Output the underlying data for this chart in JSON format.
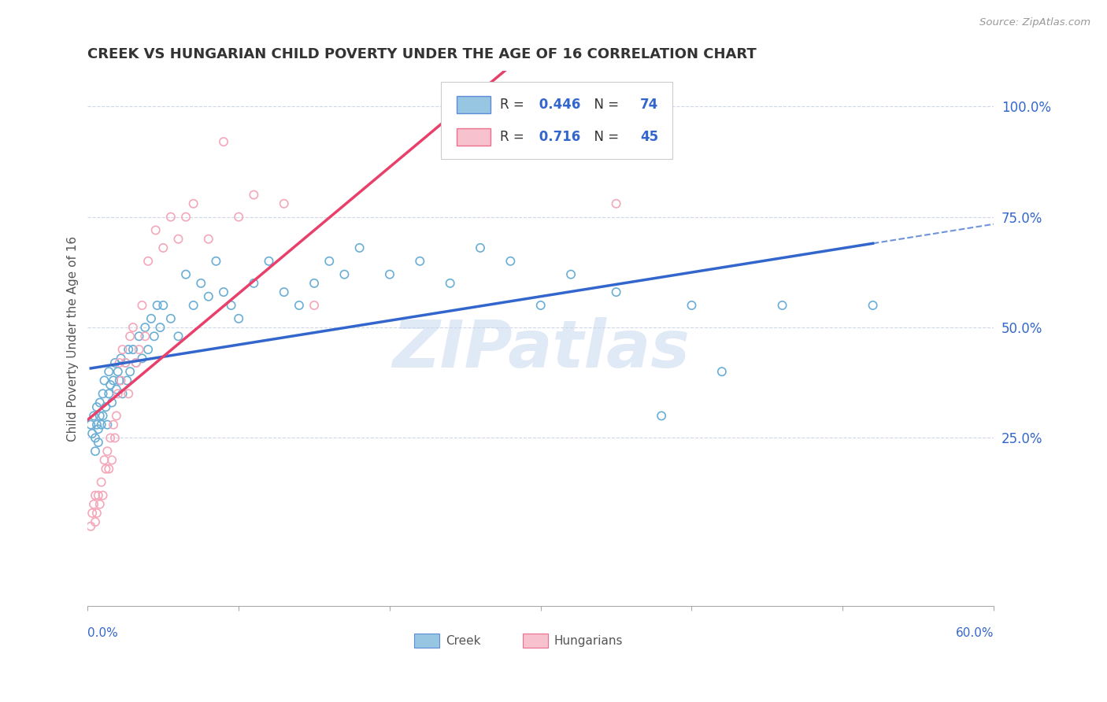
{
  "title": "CREEK VS HUNGARIAN CHILD POVERTY UNDER THE AGE OF 16 CORRELATION CHART",
  "source": "Source: ZipAtlas.com",
  "ylabel": "Child Poverty Under the Age of 16",
  "ylabel_right_ticks": [
    "100.0%",
    "75.0%",
    "50.0%",
    "25.0%"
  ],
  "ylabel_right_vals": [
    1.0,
    0.75,
    0.5,
    0.25
  ],
  "xlim": [
    0.0,
    0.6
  ],
  "ylim": [
    -0.13,
    1.08
  ],
  "creek_color": "#6aaed6",
  "hungarian_color": "#f4a7b9",
  "creek_line_color": "#3366cc",
  "hungarian_line_color": "#e8406a",
  "creek_R": 0.446,
  "creek_N": 74,
  "hungarian_R": 0.716,
  "hungarian_N": 45,
  "creek_scatter": [
    [
      0.002,
      0.28
    ],
    [
      0.003,
      0.26
    ],
    [
      0.004,
      0.3
    ],
    [
      0.005,
      0.25
    ],
    [
      0.005,
      0.22
    ],
    [
      0.006,
      0.28
    ],
    [
      0.006,
      0.32
    ],
    [
      0.007,
      0.27
    ],
    [
      0.007,
      0.24
    ],
    [
      0.008,
      0.3
    ],
    [
      0.008,
      0.33
    ],
    [
      0.009,
      0.28
    ],
    [
      0.01,
      0.35
    ],
    [
      0.01,
      0.3
    ],
    [
      0.011,
      0.38
    ],
    [
      0.012,
      0.32
    ],
    [
      0.013,
      0.28
    ],
    [
      0.014,
      0.35
    ],
    [
      0.014,
      0.4
    ],
    [
      0.015,
      0.37
    ],
    [
      0.016,
      0.33
    ],
    [
      0.017,
      0.38
    ],
    [
      0.018,
      0.42
    ],
    [
      0.019,
      0.36
    ],
    [
      0.02,
      0.4
    ],
    [
      0.021,
      0.38
    ],
    [
      0.022,
      0.43
    ],
    [
      0.023,
      0.35
    ],
    [
      0.025,
      0.42
    ],
    [
      0.026,
      0.38
    ],
    [
      0.027,
      0.45
    ],
    [
      0.028,
      0.4
    ],
    [
      0.03,
      0.45
    ],
    [
      0.032,
      0.42
    ],
    [
      0.034,
      0.48
    ],
    [
      0.036,
      0.43
    ],
    [
      0.038,
      0.5
    ],
    [
      0.04,
      0.45
    ],
    [
      0.042,
      0.52
    ],
    [
      0.044,
      0.48
    ],
    [
      0.046,
      0.55
    ],
    [
      0.048,
      0.5
    ],
    [
      0.05,
      0.55
    ],
    [
      0.055,
      0.52
    ],
    [
      0.06,
      0.48
    ],
    [
      0.065,
      0.62
    ],
    [
      0.07,
      0.55
    ],
    [
      0.075,
      0.6
    ],
    [
      0.08,
      0.57
    ],
    [
      0.085,
      0.65
    ],
    [
      0.09,
      0.58
    ],
    [
      0.095,
      0.55
    ],
    [
      0.1,
      0.52
    ],
    [
      0.11,
      0.6
    ],
    [
      0.12,
      0.65
    ],
    [
      0.13,
      0.58
    ],
    [
      0.14,
      0.55
    ],
    [
      0.15,
      0.6
    ],
    [
      0.16,
      0.65
    ],
    [
      0.17,
      0.62
    ],
    [
      0.18,
      0.68
    ],
    [
      0.2,
      0.62
    ],
    [
      0.22,
      0.65
    ],
    [
      0.24,
      0.6
    ],
    [
      0.26,
      0.68
    ],
    [
      0.28,
      0.65
    ],
    [
      0.3,
      0.55
    ],
    [
      0.32,
      0.62
    ],
    [
      0.35,
      0.58
    ],
    [
      0.38,
      0.3
    ],
    [
      0.4,
      0.55
    ],
    [
      0.42,
      0.4
    ],
    [
      0.46,
      0.55
    ],
    [
      0.52,
      0.55
    ]
  ],
  "hungarian_scatter": [
    [
      0.002,
      0.05
    ],
    [
      0.003,
      0.08
    ],
    [
      0.004,
      0.1
    ],
    [
      0.005,
      0.06
    ],
    [
      0.005,
      0.12
    ],
    [
      0.006,
      0.08
    ],
    [
      0.007,
      0.12
    ],
    [
      0.008,
      0.1
    ],
    [
      0.009,
      0.15
    ],
    [
      0.01,
      0.12
    ],
    [
      0.011,
      0.2
    ],
    [
      0.012,
      0.18
    ],
    [
      0.013,
      0.22
    ],
    [
      0.014,
      0.18
    ],
    [
      0.015,
      0.25
    ],
    [
      0.016,
      0.2
    ],
    [
      0.017,
      0.28
    ],
    [
      0.018,
      0.25
    ],
    [
      0.019,
      0.3
    ],
    [
      0.02,
      0.35
    ],
    [
      0.021,
      0.42
    ],
    [
      0.022,
      0.38
    ],
    [
      0.023,
      0.45
    ],
    [
      0.025,
      0.42
    ],
    [
      0.027,
      0.35
    ],
    [
      0.028,
      0.48
    ],
    [
      0.03,
      0.5
    ],
    [
      0.032,
      0.42
    ],
    [
      0.034,
      0.45
    ],
    [
      0.036,
      0.55
    ],
    [
      0.038,
      0.48
    ],
    [
      0.04,
      0.65
    ],
    [
      0.045,
      0.72
    ],
    [
      0.05,
      0.68
    ],
    [
      0.055,
      0.75
    ],
    [
      0.06,
      0.7
    ],
    [
      0.065,
      0.75
    ],
    [
      0.07,
      0.78
    ],
    [
      0.08,
      0.7
    ],
    [
      0.09,
      0.92
    ],
    [
      0.1,
      0.75
    ],
    [
      0.11,
      0.8
    ],
    [
      0.13,
      0.78
    ],
    [
      0.15,
      0.55
    ],
    [
      0.35,
      0.78
    ]
  ],
  "watermark": "ZIPatlas",
  "background_color": "#FFFFFF",
  "grid_color": "#d0d8e8"
}
